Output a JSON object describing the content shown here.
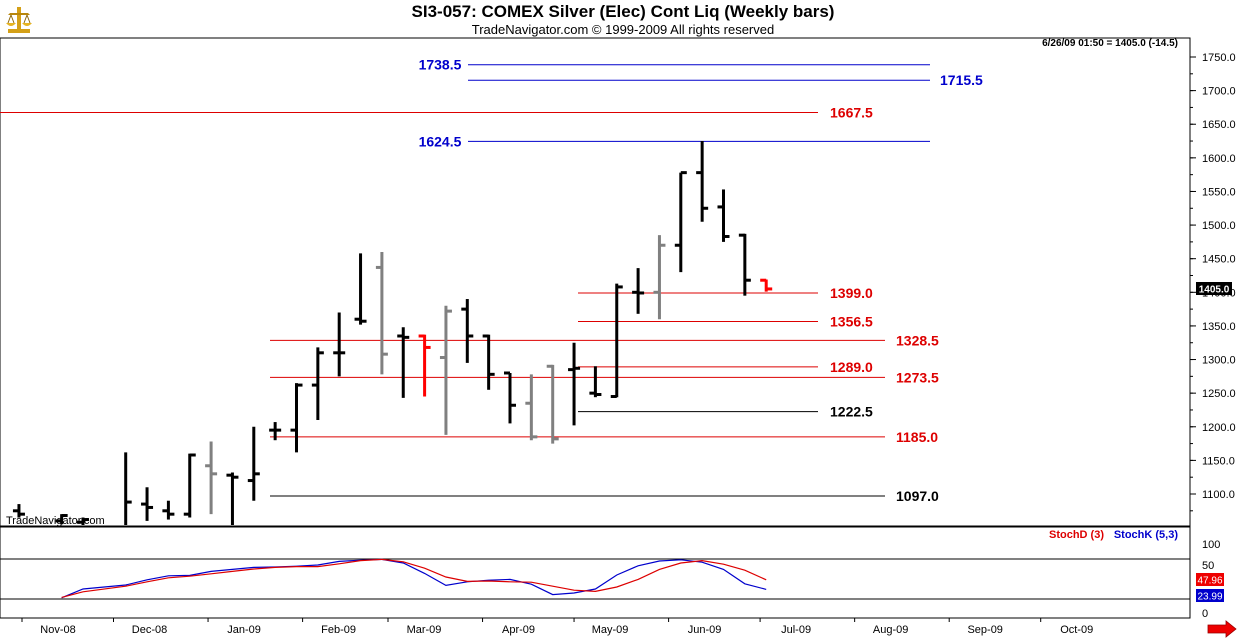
{
  "header": {
    "title": "SI3-057:  COMEX Silver (Elec) Cont Liq  (Weekly bars)",
    "subtitle": "TradeNavigator.com © 1999-2009 All rights reserved",
    "quote_stamp": "6/26/09 01:50 = 1405.0 (-14.5)",
    "watermark": "TradeNavigator.com",
    "logo_icon": "balance-scale-icon",
    "scroll_icon": "right-arrow-icon"
  },
  "colors": {
    "bull_bar": "#000000",
    "bear_bar": "#808080",
    "last_bar": "#ff0000",
    "red_level": "#dd0000",
    "blue_level": "#0000cc",
    "black_level": "#000000",
    "stoch_d": "#dd0000",
    "stoch_k": "#0000cc"
  },
  "price_axis": {
    "ticks": [
      "1100.0",
      "1150.0",
      "1200.0",
      "1250.0",
      "1300.0",
      "1350.0",
      "1400.0",
      "1450.0",
      "1500.0",
      "1550.0",
      "1600.0",
      "1650.0",
      "1700.0",
      "1750.0"
    ],
    "min": 1065,
    "max": 1770,
    "last_price_label": "1405.0"
  },
  "stoch_axis": {
    "ticks": [
      "100",
      "50",
      "0"
    ],
    "d_label": "47.96",
    "k_label": "23.99"
  },
  "x_axis": {
    "labels": [
      "Nov-08",
      "Dec-08",
      "Jan-09",
      "Feb-09",
      "Mar-09",
      "Apr-09",
      "May-09",
      "Jun-09",
      "Jul-09",
      "Aug-09",
      "Sep-09",
      "Oct-09"
    ]
  },
  "levels": [
    {
      "value": 1738.5,
      "label": "1738.5",
      "color": "blue"
    },
    {
      "value": 1715.5,
      "label": "1715.5",
      "color": "blue"
    },
    {
      "value": 1667.5,
      "label": "1667.5",
      "color": "red"
    },
    {
      "value": 1624.5,
      "label": "1624.5",
      "color": "blue"
    },
    {
      "value": 1399.0,
      "label": "1399.0",
      "color": "red"
    },
    {
      "value": 1356.5,
      "label": "1356.5",
      "color": "red"
    },
    {
      "value": 1328.5,
      "label": "1328.5",
      "color": "red"
    },
    {
      "value": 1289.0,
      "label": "1289.0",
      "color": "red"
    },
    {
      "value": 1273.5,
      "label": "1273.5",
      "color": "red"
    },
    {
      "value": 1222.5,
      "label": "1222.5",
      "color": "black"
    },
    {
      "value": 1185.0,
      "label": "1185.0",
      "color": "red"
    },
    {
      "value": 1097.0,
      "label": "1097.0",
      "color": "black"
    }
  ],
  "legend": {
    "stochd": "StochD (3)",
    "stochk": "StochK (5,3)"
  },
  "chart_data": {
    "type": "ohlc",
    "title": "SI3-057:  COMEX Silver (Elec) Cont Liq  (Weekly bars)",
    "bars": [
      {
        "date": "2008-10-31",
        "o": 1075,
        "h": 1085,
        "l": 1065,
        "c": 1070,
        "dir": "up"
      },
      {
        "date": "2008-11-14",
        "o": 1060,
        "h": 1070,
        "l": 1055,
        "c": 1068,
        "dir": "up"
      },
      {
        "date": "2008-11-21",
        "o": 1058,
        "h": 1065,
        "l": 1050,
        "c": 1062,
        "dir": "up"
      },
      {
        "date": "2008-12-05",
        "o": 1050,
        "h": 1162,
        "l": 1050,
        "c": 1088,
        "dir": "up"
      },
      {
        "date": "2008-12-12",
        "o": 1085,
        "h": 1110,
        "l": 1060,
        "c": 1080,
        "dir": "up"
      },
      {
        "date": "2008-12-19",
        "o": 1075,
        "h": 1090,
        "l": 1062,
        "c": 1070,
        "dir": "up"
      },
      {
        "date": "2008-12-26",
        "o": 1070,
        "h": 1160,
        "l": 1065,
        "c": 1158,
        "dir": "up"
      },
      {
        "date": "2009-01-02",
        "o": 1142,
        "h": 1178,
        "l": 1070,
        "c": 1130,
        "dir": "down"
      },
      {
        "date": "2009-01-09",
        "o": 1128,
        "h": 1132,
        "l": 1035,
        "c": 1125,
        "dir": "up"
      },
      {
        "date": "2009-01-16",
        "o": 1120,
        "h": 1200,
        "l": 1090,
        "c": 1130,
        "dir": "up"
      },
      {
        "date": "2009-01-23",
        "o": 1195,
        "h": 1207,
        "l": 1180,
        "c": 1195,
        "dir": "up"
      },
      {
        "date": "2009-01-30",
        "o": 1195,
        "h": 1265,
        "l": 1162,
        "c": 1262,
        "dir": "up"
      },
      {
        "date": "2009-02-06",
        "o": 1262,
        "h": 1318,
        "l": 1210,
        "c": 1310,
        "dir": "up"
      },
      {
        "date": "2009-02-13",
        "o": 1310,
        "h": 1370,
        "l": 1275,
        "c": 1310,
        "dir": "up"
      },
      {
        "date": "2009-02-20",
        "o": 1360,
        "h": 1458,
        "l": 1352,
        "c": 1357,
        "dir": "up"
      },
      {
        "date": "2009-02-27",
        "o": 1437,
        "h": 1460,
        "l": 1278,
        "c": 1308,
        "dir": "down"
      },
      {
        "date": "2009-03-06",
        "o": 1335,
        "h": 1348,
        "l": 1243,
        "c": 1333,
        "dir": "up"
      },
      {
        "date": "2009-03-13",
        "o": 1335,
        "h": 1337,
        "l": 1245,
        "c": 1318,
        "dir": "red"
      },
      {
        "date": "2009-03-20",
        "o": 1303,
        "h": 1380,
        "l": 1188,
        "c": 1372,
        "dir": "down"
      },
      {
        "date": "2009-03-27",
        "o": 1375,
        "h": 1390,
        "l": 1295,
        "c": 1335,
        "dir": "up"
      },
      {
        "date": "2009-04-03",
        "o": 1335,
        "h": 1337,
        "l": 1255,
        "c": 1278,
        "dir": "up"
      },
      {
        "date": "2009-04-10",
        "o": 1280,
        "h": 1280,
        "l": 1205,
        "c": 1232,
        "dir": "up"
      },
      {
        "date": "2009-04-17",
        "o": 1235,
        "h": 1278,
        "l": 1180,
        "c": 1185,
        "dir": "down"
      },
      {
        "date": "2009-04-24",
        "o": 1290,
        "h": 1292,
        "l": 1175,
        "c": 1182,
        "dir": "down"
      },
      {
        "date": "2009-05-01",
        "o": 1285,
        "h": 1325,
        "l": 1202,
        "c": 1287,
        "dir": "up"
      },
      {
        "date": "2009-05-08",
        "o": 1250,
        "h": 1290,
        "l": 1244,
        "c": 1248,
        "dir": "up"
      },
      {
        "date": "2009-05-15",
        "o": 1245,
        "h": 1413,
        "l": 1244,
        "c": 1408,
        "dir": "up"
      },
      {
        "date": "2009-05-22",
        "o": 1400,
        "h": 1436,
        "l": 1368,
        "c": 1399,
        "dir": "up"
      },
      {
        "date": "2009-05-29",
        "o": 1400,
        "h": 1485,
        "l": 1360,
        "c": 1470,
        "dir": "down"
      },
      {
        "date": "2009-06-05",
        "o": 1470,
        "h": 1578,
        "l": 1430,
        "c": 1578,
        "dir": "up"
      },
      {
        "date": "2009-06-12",
        "o": 1578,
        "h": 1625,
        "l": 1505,
        "c": 1525,
        "dir": "up"
      },
      {
        "date": "2009-06-19",
        "o": 1527,
        "h": 1553,
        "l": 1475,
        "c": 1483,
        "dir": "up"
      },
      {
        "date": "2009-06-26",
        "o": 1485,
        "h": 1487,
        "l": 1395,
        "c": 1418,
        "dir": "up"
      },
      {
        "date": "2009-07-03",
        "o": 1418,
        "h": 1419,
        "l": 1401,
        "c": 1405,
        "dir": "red"
      }
    ],
    "stoch_d": [
      4,
      18,
      32,
      43,
      53,
      57,
      63,
      69,
      75,
      79,
      81,
      81,
      88,
      96,
      99,
      93,
      77,
      55,
      44,
      45,
      43,
      42,
      32,
      22,
      19,
      30,
      49,
      74,
      90,
      96,
      87,
      72,
      48
    ],
    "stoch_k": [
      3,
      25,
      35,
      48,
      58,
      59,
      69,
      74,
      79,
      80,
      82,
      85,
      94,
      97,
      99,
      90,
      64,
      34,
      43,
      47,
      49,
      37,
      11,
      15,
      25,
      60,
      83,
      95,
      98,
      92,
      74,
      38,
      24
    ],
    "xlabels": [
      "Nov-08",
      "Dec-08",
      "Jan-09",
      "Feb-09",
      "Mar-09",
      "Apr-09",
      "May-09",
      "Jun-09",
      "Jul-09",
      "Aug-09",
      "Sep-09",
      "Oct-09"
    ],
    "ylim": [
      1065,
      1770
    ],
    "grid": false
  }
}
